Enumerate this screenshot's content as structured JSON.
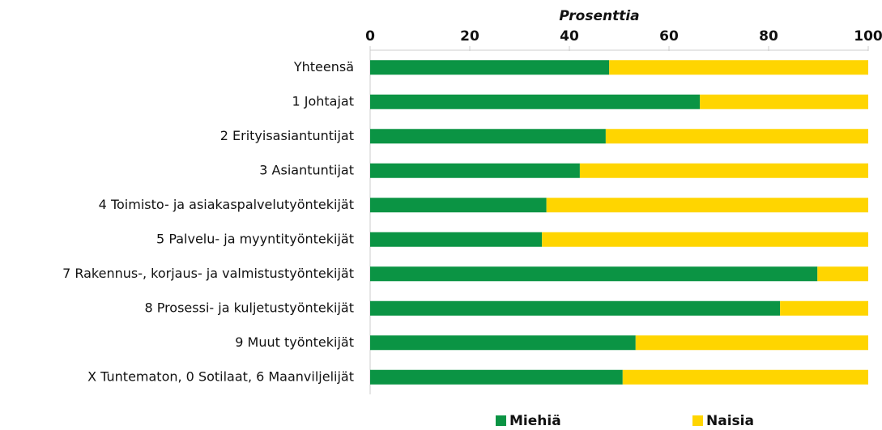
{
  "chart_data": {
    "type": "stacked-barh",
    "x_axis_label": "Prosenttia",
    "categories": [
      "Yhteensä",
      "1 Johtajat",
      "2 Erityisasiantuntijat",
      "3 Asiantuntijat",
      "4 Toimisto- ja asiakaspalvelutyöntekijät",
      "5 Palvelu- ja myyntityöntekijät",
      "7 Rakennus-, korjaus- ja valmistustyöntekijät",
      "8 Prosessi- ja kuljetustyöntekijät",
      "9 Muut työntekijät",
      "X Tuntematon, 0 Sotilaat, 6 Maanviljelijät"
    ],
    "series": [
      {
        "name": "Miehiä",
        "color": "#0b9444",
        "values": [
          48.0,
          66.2,
          47.3,
          42.1,
          35.4,
          34.5,
          89.8,
          82.3,
          53.3,
          50.7
        ]
      },
      {
        "name": "Naisia",
        "color": "#ffd500",
        "values": [
          52.0,
          33.8,
          52.7,
          57.9,
          64.6,
          65.5,
          10.2,
          17.7,
          46.7,
          49.3
        ]
      }
    ],
    "xlim": [
      0,
      100
    ],
    "xticks": [
      0,
      20,
      40,
      60,
      80,
      100
    ],
    "legend": "bottom"
  }
}
